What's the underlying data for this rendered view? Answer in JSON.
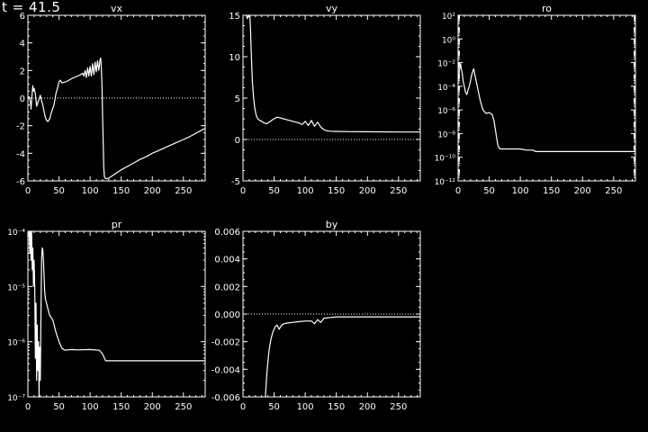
{
  "time_label": "t = 41.5",
  "colors": {
    "background": "#000000",
    "foreground": "#ffffff"
  },
  "chart_data": [
    {
      "type": "line",
      "title": "vx",
      "xlim": [
        0,
        285
      ],
      "ylim": [
        -6,
        6
      ],
      "yscale": "linear",
      "xticks": [
        0,
        50,
        100,
        150,
        200,
        250
      ],
      "yticks": [
        -6,
        -4,
        -2,
        0,
        2,
        4,
        6
      ],
      "ytick_labels": [
        "-6",
        "-4",
        "-2",
        "0",
        "2",
        "4",
        "6"
      ],
      "reference_line": 0,
      "series": [
        {
          "x": [
            0,
            2,
            4,
            5,
            6,
            7,
            8,
            9,
            10,
            12,
            14,
            16,
            18,
            20,
            22,
            24,
            26,
            28,
            30,
            32,
            35,
            38,
            42,
            45,
            48,
            50,
            52,
            55,
            58,
            62,
            66,
            70,
            75,
            80,
            85,
            88,
            90,
            92,
            94,
            96,
            98,
            100,
            102,
            104,
            106,
            108,
            110,
            112,
            114,
            116,
            117,
            118,
            119,
            120,
            121,
            122,
            123,
            124,
            126,
            130,
            135,
            140,
            150,
            160,
            170,
            180,
            190,
            200,
            210,
            220,
            230,
            240,
            250,
            260,
            270,
            280,
            285
          ],
          "y": [
            0,
            0.1,
            -0.3,
            -0.8,
            -0.2,
            0.4,
            0.9,
            0.5,
            0.7,
            0.3,
            -0.6,
            -0.3,
            -0.1,
            0.2,
            -0.2,
            -0.5,
            -1.0,
            -1.4,
            -1.6,
            -1.7,
            -1.5,
            -1.0,
            -0.5,
            0.3,
            0.8,
            1.2,
            1.3,
            1.1,
            1.15,
            1.2,
            1.3,
            1.4,
            1.5,
            1.6,
            1.7,
            1.8,
            1.6,
            2.0,
            1.5,
            2.2,
            1.6,
            2.3,
            1.6,
            2.5,
            1.7,
            2.6,
            1.9,
            2.7,
            2.0,
            2.8,
            2.9,
            2.2,
            1.0,
            -1.0,
            -3.0,
            -5.0,
            -5.7,
            -5.8,
            -5.85,
            -5.8,
            -5.65,
            -5.5,
            -5.2,
            -4.95,
            -4.7,
            -4.45,
            -4.25,
            -4.0,
            -3.8,
            -3.6,
            -3.4,
            -3.2,
            -3.0,
            -2.8,
            -2.55,
            -2.3,
            -2.2
          ]
        }
      ]
    },
    {
      "type": "line",
      "title": "vy",
      "xlim": [
        0,
        285
      ],
      "ylim": [
        -5,
        15
      ],
      "yscale": "linear",
      "xticks": [
        0,
        50,
        100,
        150,
        200,
        250
      ],
      "yticks": [
        -5,
        0,
        5,
        10,
        15
      ],
      "ytick_labels": [
        "-5",
        "0",
        "5",
        "10",
        "15"
      ],
      "reference_line": 0,
      "series": [
        {
          "x": [
            5,
            7,
            9,
            10,
            11,
            12,
            13,
            14,
            15,
            17,
            19,
            21,
            23,
            25,
            27,
            30,
            34,
            38,
            42,
            46,
            50,
            55,
            60,
            65,
            70,
            80,
            90,
            95,
            100,
            105,
            110,
            115,
            120,
            125,
            130,
            135,
            140,
            150,
            170,
            200,
            250,
            285
          ],
          "y": [
            15,
            14.6,
            15,
            14.8,
            15,
            13.5,
            11,
            9,
            7,
            5,
            3.8,
            3.0,
            2.6,
            2.4,
            2.3,
            2.2,
            2.0,
            1.9,
            2.1,
            2.3,
            2.5,
            2.7,
            2.6,
            2.5,
            2.4,
            2.2,
            2.0,
            1.8,
            2.2,
            1.7,
            2.3,
            1.6,
            2.1,
            1.5,
            1.2,
            1.05,
            1.0,
            0.98,
            0.95,
            0.93,
            0.9,
            0.9
          ]
        }
      ]
    },
    {
      "type": "line",
      "title": "ro",
      "xlim": [
        0,
        285
      ],
      "ylim": [
        1e-12,
        100
      ],
      "yscale": "log",
      "xticks": [
        0,
        50,
        100,
        150,
        200,
        250
      ],
      "yticks": [
        1e-12,
        1e-10,
        1e-08,
        1e-06,
        0.0001,
        0.01,
        1,
        100
      ],
      "ytick_labels": [
        "10⁻¹²",
        "10⁻¹⁰",
        "10⁻⁸",
        "10⁻⁶",
        "10⁻⁴",
        "10⁻²",
        "10⁰",
        "10²"
      ],
      "series": [
        {
          "x": [
            0,
            1,
            2,
            3,
            4,
            5,
            6,
            7,
            8,
            10,
            12,
            14,
            16,
            18,
            20,
            22,
            25,
            28,
            32,
            36,
            40,
            45,
            50,
            55,
            58,
            60,
            62,
            64,
            66,
            68,
            80,
            100,
            110,
            120,
            125,
            130,
            150,
            200,
            250,
            285
          ],
          "y": [
            0.001,
            0.0004,
            0.002,
            0.004,
            0.008,
            0.003,
            0.002,
            0.001,
            0.0003,
            0.0001,
            3e-05,
            2e-05,
            5e-05,
            0.0001,
            0.0003,
            0.001,
            0.003,
            0.0005,
            5e-05,
            5e-06,
            1e-06,
            5e-07,
            6e-07,
            4e-07,
            1e-07,
            2e-08,
            4e-09,
            1e-09,
            6e-10,
            5e-10,
            5e-10,
            5e-10,
            4e-10,
            4e-10,
            3e-10,
            3e-10,
            3e-10,
            3e-10,
            3e-10,
            3e-10
          ]
        }
      ]
    },
    {
      "type": "line",
      "title": "pr",
      "xlim": [
        0,
        285
      ],
      "ylim": [
        1e-07,
        0.0001
      ],
      "yscale": "log",
      "xticks": [
        0,
        50,
        100,
        150,
        200,
        250
      ],
      "yticks": [
        1e-07,
        1e-06,
        1e-05,
        0.0001
      ],
      "ytick_labels": [
        "10⁻⁷",
        "10⁻⁶",
        "10⁻⁵",
        "10⁻⁴"
      ],
      "series": [
        {
          "x": [
            1,
            2,
            3,
            4,
            5,
            6,
            7,
            8,
            9,
            10,
            11,
            12,
            13,
            14,
            15,
            16,
            17,
            18,
            19,
            20,
            21,
            22,
            23,
            24,
            25,
            26,
            27,
            28,
            30,
            32,
            35,
            40,
            45,
            50,
            55,
            60,
            70,
            80,
            100,
            115,
            120,
            125,
            150,
            200,
            250,
            285
          ],
          "y": [
            8e-05,
            0.0001,
            4e-05,
            0.0002,
            3e-05,
            0.0001,
            2e-05,
            5e-05,
            1e-05,
            3e-05,
            1e-05,
            5e-07,
            5e-06,
            2e-07,
            2e-06,
            3e-07,
            1e-06,
            1e-07,
            8e-07,
            2e-07,
            3e-06,
            3e-05,
            5e-05,
            4.5e-05,
            3e-05,
            1.5e-05,
            8e-06,
            6e-06,
            5e-06,
            4e-06,
            3e-06,
            2.5e-06,
            1.5e-06,
            1e-06,
            7.5e-07,
            7e-07,
            7.2e-07,
            7.1e-07,
            7.2e-07,
            7e-07,
            6e-07,
            4.5e-07,
            4.5e-07,
            4.5e-07,
            4.5e-07,
            4.5e-07
          ]
        }
      ]
    },
    {
      "type": "line",
      "title": "by",
      "xlim": [
        0,
        285
      ],
      "ylim": [
        -0.006,
        0.006
      ],
      "yscale": "linear",
      "xticks": [
        0,
        50,
        100,
        150,
        200,
        250
      ],
      "yticks": [
        -0.006,
        -0.004,
        -0.002,
        0,
        0.002,
        0.004,
        0.006
      ],
      "ytick_labels": [
        "-0.006",
        "-0.004",
        "-0.002",
        "0.000",
        "0.002",
        "0.004",
        "0.006"
      ],
      "reference_line": 0,
      "series": [
        {
          "x": [
            36,
            38,
            40,
            42,
            45,
            48,
            52,
            55,
            58,
            62,
            66,
            70,
            80,
            90,
            100,
            110,
            115,
            120,
            125,
            130,
            140,
            150,
            200,
            285
          ],
          "y": [
            -0.006,
            -0.0045,
            -0.0035,
            -0.0026,
            -0.0018,
            -0.0013,
            -0.0009,
            -0.0008,
            -0.0011,
            -0.0008,
            -0.0007,
            -0.00065,
            -0.0006,
            -0.00055,
            -0.0005,
            -0.0005,
            -0.0007,
            -0.0004,
            -0.0006,
            -0.0003,
            -0.00025,
            -0.0002,
            -0.0002,
            -0.0002
          ]
        }
      ]
    }
  ]
}
